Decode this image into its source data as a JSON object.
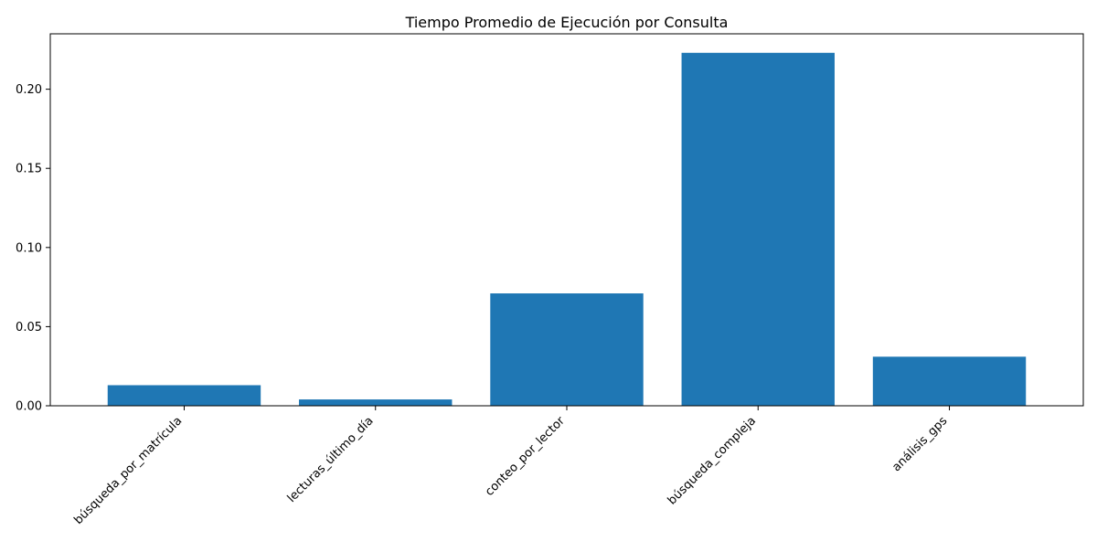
{
  "chart_data": {
    "type": "bar",
    "title": "Tiempo Promedio de Ejecución por Consulta",
    "xlabel": "",
    "ylabel": "",
    "categories": [
      "búsqueda_por_matrícula",
      "lecturas_último_día",
      "conteo_por_lector",
      "búsqueda_compleja",
      "análisis_gps"
    ],
    "values": [
      0.013,
      0.004,
      0.071,
      0.223,
      0.031
    ],
    "ylim": [
      0,
      0.235
    ],
    "yticks": [
      0.0,
      0.05,
      0.1,
      0.15,
      0.2
    ],
    "ytick_labels": [
      "0.00",
      "0.05",
      "0.10",
      "0.15",
      "0.20"
    ],
    "bar_color": "#1f77b4",
    "grid": false,
    "legend": "none",
    "xtick_rotation": "45 degrees, right-aligned"
  }
}
